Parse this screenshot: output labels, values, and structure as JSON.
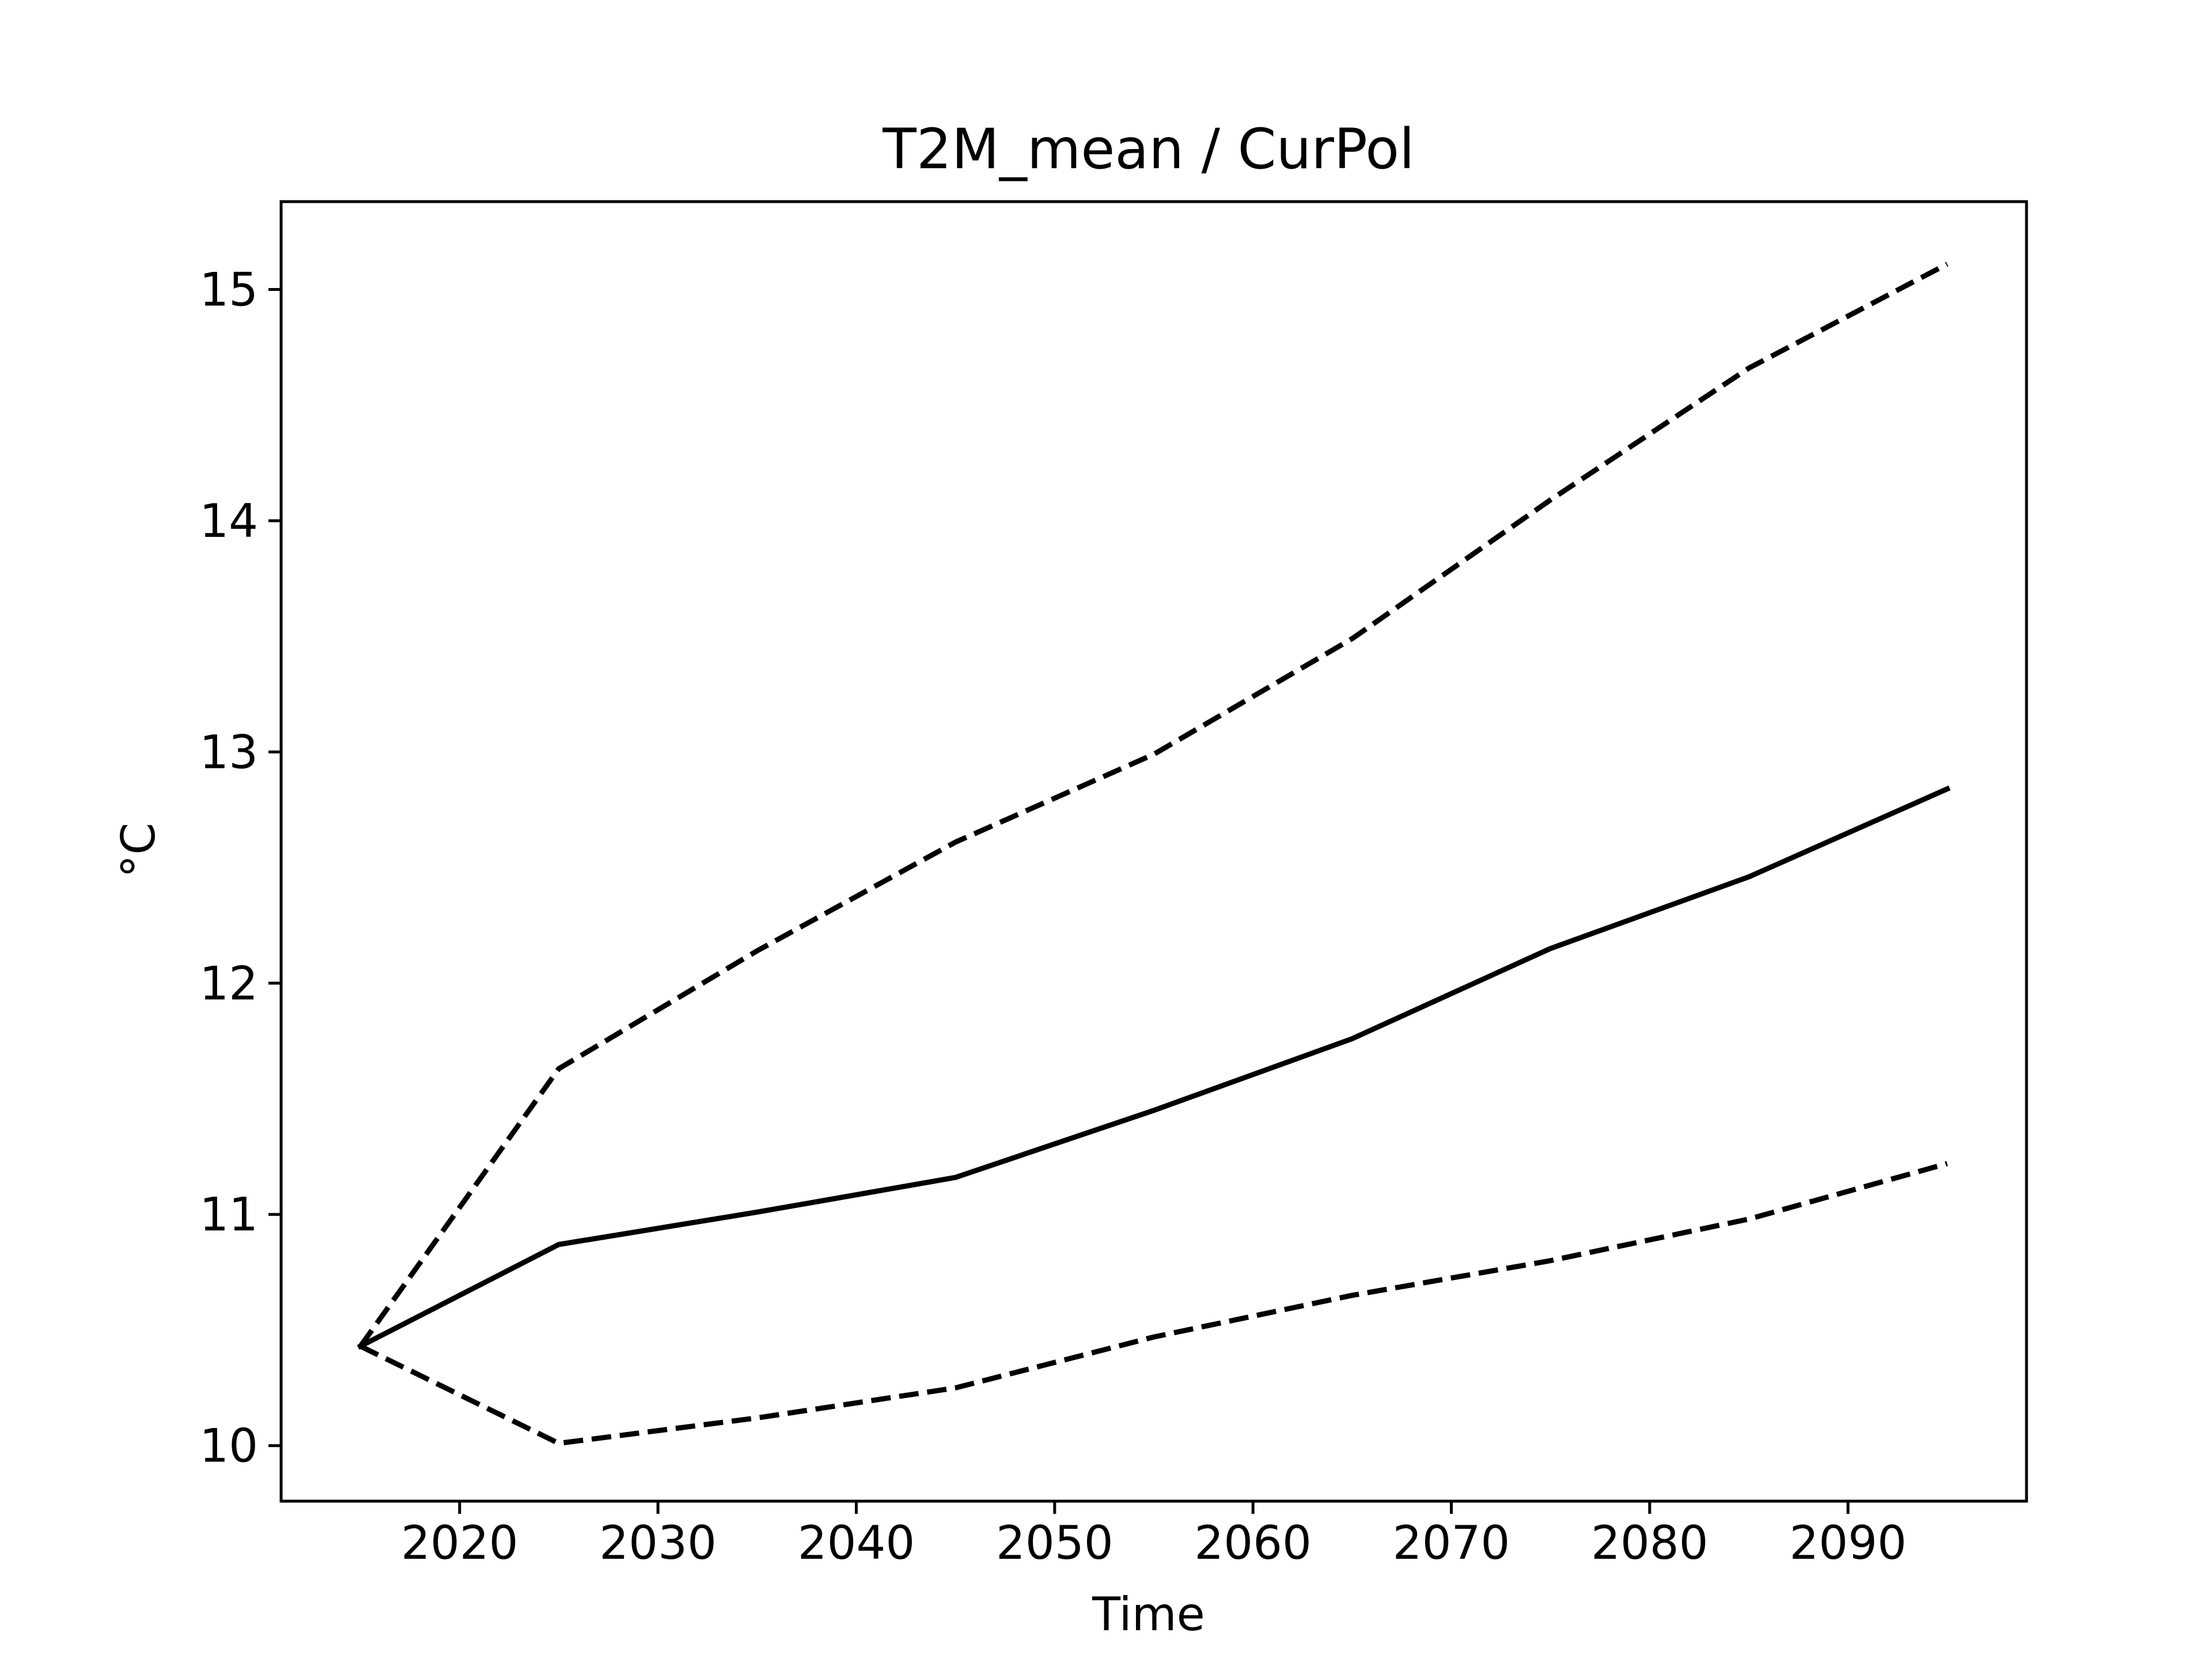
{
  "chart_data": {
    "type": "line",
    "title": "T2M_mean / CurPol",
    "xlabel": "Time",
    "ylabel": "°C",
    "x": [
      2015,
      2025,
      2035,
      2045,
      2055,
      2065,
      2075,
      2085,
      2095
    ],
    "xlim": [
      2011,
      2099
    ],
    "ylim": [
      9.76,
      15.38
    ],
    "xticks": [
      2020,
      2030,
      2040,
      2050,
      2060,
      2070,
      2080,
      2090
    ],
    "yticks": [
      10,
      11,
      12,
      13,
      14,
      15
    ],
    "grid": false,
    "series": [
      {
        "style": "solid",
        "color": "#000000",
        "values": [
          10.43,
          10.87,
          11.01,
          11.16,
          11.45,
          11.76,
          12.15,
          12.46,
          12.84
        ]
      },
      {
        "style": "dashed",
        "color": "#000000",
        "values": [
          10.43,
          11.63,
          12.14,
          12.61,
          12.99,
          13.49,
          14.09,
          14.66,
          15.11
        ]
      },
      {
        "style": "dashed",
        "color": "#000000",
        "values": [
          10.43,
          10.01,
          10.12,
          10.25,
          10.47,
          10.65,
          10.8,
          10.98,
          11.22
        ]
      }
    ]
  }
}
